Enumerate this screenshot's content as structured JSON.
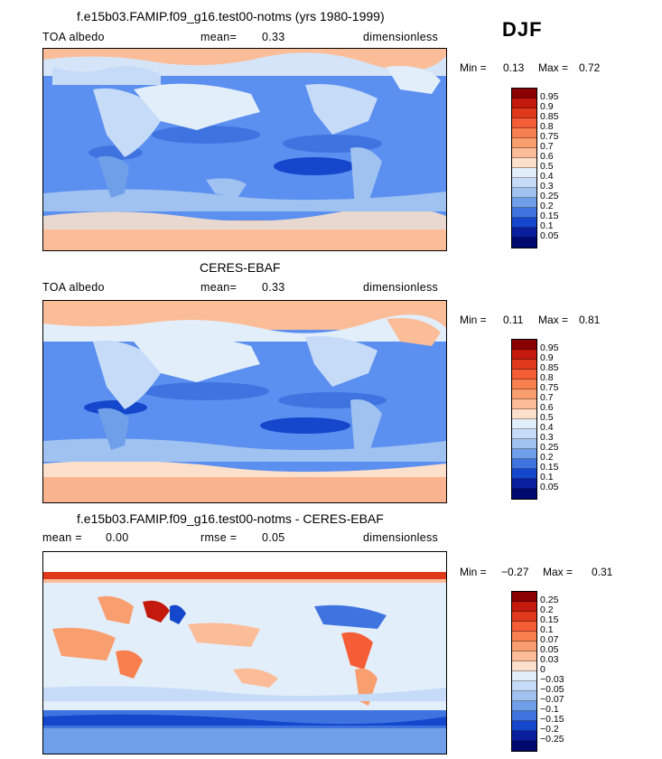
{
  "season": "DJF",
  "panels": [
    {
      "title": "f.e15b03.FAMIP.f09_g16.test00-notms (yrs 1980-1999)",
      "left_label": "TOA albedo",
      "mid_label": "mean=",
      "mid_value": "0.33",
      "right_label": "dimensionless",
      "min_label": "Min =",
      "min_value": "0.13",
      "max_label": "Max =",
      "max_value": "0.72",
      "colorbar": {
        "labels": [
          "0.95",
          "0.9",
          "0.85",
          "0.8",
          "0.75",
          "0.7",
          "0.6",
          "0.5",
          "0.4",
          "0.3",
          "0.25",
          "0.2",
          "0.15",
          "0.1",
          "0.05"
        ],
        "colors": [
          "#8b0000",
          "#c41a0d",
          "#df3a1c",
          "#f45d35",
          "#f7804e",
          "#f99e6e",
          "#fbbd98",
          "#fde0cc",
          "#e3eefb",
          "#c6dbf7",
          "#a0c2f1",
          "#6f9fe9",
          "#3f74e0",
          "#1547cc",
          "#0a1f9e",
          "#000a6e"
        ]
      }
    },
    {
      "title": "CERES-EBAF",
      "left_label": "TOA albedo",
      "mid_label": "mean=",
      "mid_value": "0.33",
      "right_label": "dimensionless",
      "min_label": "Min =",
      "min_value": "0.11",
      "max_label": "Max =",
      "max_value": "0.81",
      "colorbar": {
        "labels": [
          "0.95",
          "0.9",
          "0.85",
          "0.8",
          "0.75",
          "0.7",
          "0.6",
          "0.5",
          "0.4",
          "0.3",
          "0.25",
          "0.2",
          "0.15",
          "0.1",
          "0.05"
        ],
        "colors": [
          "#8b0000",
          "#c41a0d",
          "#df3a1c",
          "#f45d35",
          "#f7804e",
          "#f99e6e",
          "#fbbd98",
          "#fde0cc",
          "#e3eefb",
          "#c6dbf7",
          "#a0c2f1",
          "#6f9fe9",
          "#3f74e0",
          "#1547cc",
          "#0a1f9e",
          "#000a6e"
        ]
      }
    },
    {
      "title": "f.e15b03.FAMIP.f09_g16.test00-notms - CERES-EBAF",
      "left_label": "mean =",
      "left_value": "0.00",
      "mid_label": "rmse =",
      "mid_value": "0.05",
      "right_label": "dimensionless",
      "min_label": "Min =",
      "min_value": "−0.27",
      "max_label": "Max =",
      "max_value": "0.31",
      "colorbar": {
        "labels": [
          "0.25",
          "0.2",
          "0.15",
          "0.1",
          "0.07",
          "0.05",
          "0.03",
          "0",
          "−0.03",
          "−0.05",
          "−0.07",
          "−0.1",
          "−0.15",
          "−0.2",
          "−0.25"
        ],
        "colors": [
          "#8b0000",
          "#c41a0d",
          "#df3a1c",
          "#f45d35",
          "#f7804e",
          "#f99e6e",
          "#fbbd98",
          "#fde0cc",
          "#e3eefb",
          "#c6dbf7",
          "#a0c2f1",
          "#6f9fe9",
          "#3f74e0",
          "#1547cc",
          "#0a1f9e",
          "#000a6e"
        ]
      }
    }
  ]
}
